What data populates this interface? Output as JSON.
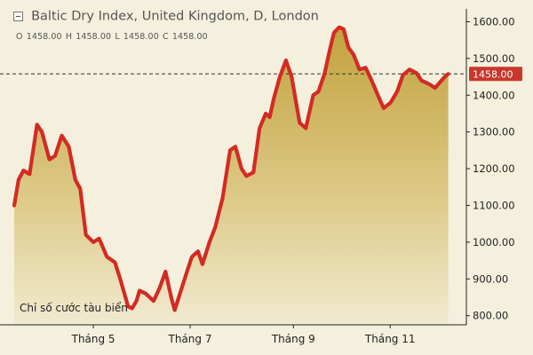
{
  "chart_data": {
    "type": "area",
    "title": "Baltic Dry Index, United Kingdom, D, London",
    "ohlc": {
      "open_label": "O",
      "open": "1458.00",
      "high_label": "H",
      "high": "1458.00",
      "low_label": "L",
      "low": "1458.00",
      "close_label": "C",
      "close": "1458.00"
    },
    "last_value": 1458,
    "last_value_label": "1458.00",
    "annotation": "Chỉ số cước tàu biển",
    "y_ticks": [
      800,
      900,
      1000,
      1100,
      1200,
      1300,
      1400,
      1500,
      1600
    ],
    "y_tick_labels": [
      "800.00",
      "900.00",
      "1000.00",
      "1100.00",
      "1200.00",
      "1300.00",
      "1400.00",
      "1500.00",
      "1600.00"
    ],
    "ylim": [
      775,
      1635
    ],
    "x_ticks": [
      {
        "label": "Tháng 5",
        "t": 0.18
      },
      {
        "label": "Tháng 7",
        "t": 0.4
      },
      {
        "label": "Tháng 9",
        "t": 0.635
      },
      {
        "label": "Tháng 11",
        "t": 0.855
      }
    ],
    "grid": false,
    "series": [
      {
        "t": [
          0.0,
          0.01,
          0.021,
          0.035,
          0.052,
          0.063,
          0.08,
          0.093,
          0.108,
          0.124,
          0.139,
          0.15,
          0.163,
          0.18,
          0.193,
          0.211,
          0.229,
          0.241,
          0.259,
          0.268,
          0.278,
          0.285,
          0.299,
          0.317,
          0.331,
          0.344,
          0.358,
          0.365,
          0.377,
          0.393,
          0.404,
          0.418,
          0.428,
          0.444,
          0.457,
          0.474,
          0.491,
          0.503,
          0.517,
          0.528,
          0.544,
          0.558,
          0.572,
          0.581,
          0.59,
          0.604,
          0.618,
          0.631,
          0.649,
          0.663,
          0.68,
          0.692,
          0.706,
          0.717,
          0.727,
          0.739,
          0.749,
          0.76,
          0.772,
          0.785,
          0.799,
          0.813,
          0.827,
          0.84,
          0.856,
          0.871,
          0.884,
          0.899,
          0.915,
          0.926,
          0.944,
          0.957,
          0.968,
          0.979,
          0.987
        ],
        "values": [
          1100,
          1170,
          1195,
          1185,
          1320,
          1300,
          1225,
          1235,
          1290,
          1260,
          1170,
          1145,
          1020,
          1000,
          1010,
          960,
          945,
          900,
          825,
          820,
          840,
          868,
          860,
          840,
          876,
          920,
          845,
          815,
          860,
          920,
          960,
          975,
          940,
          1000,
          1040,
          1120,
          1250,
          1260,
          1200,
          1180,
          1190,
          1310,
          1350,
          1340,
          1390,
          1450,
          1495,
          1450,
          1325,
          1310,
          1400,
          1410,
          1460,
          1520,
          1570,
          1585,
          1580,
          1530,
          1510,
          1470,
          1475,
          1440,
          1400,
          1365,
          1380,
          1410,
          1455,
          1470,
          1460,
          1440,
          1430,
          1420,
          1435,
          1450,
          1458
        ]
      }
    ]
  }
}
